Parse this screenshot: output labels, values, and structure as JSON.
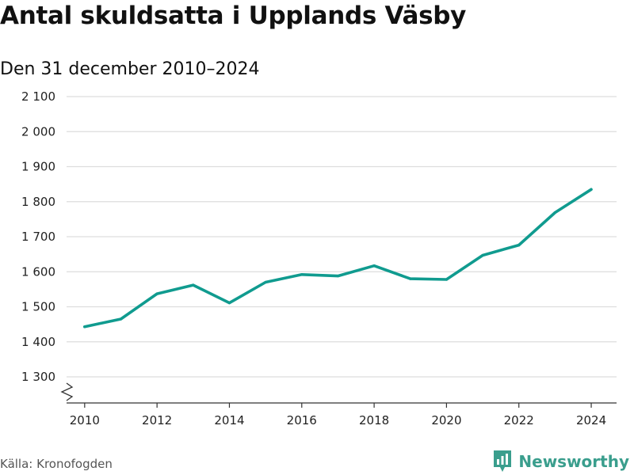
{
  "chart_data": {
    "type": "line",
    "title": "Antal skuldsatta i Upplands Väsby",
    "subtitle": "Den 31 december 2010–2024",
    "x": [
      2010,
      2011,
      2012,
      2013,
      2014,
      2015,
      2016,
      2017,
      2018,
      2019,
      2020,
      2021,
      2022,
      2023,
      2024
    ],
    "series": [
      {
        "name": "Antal skuldsatta",
        "values": [
          1443,
          1465,
          1537,
          1562,
          1511,
          1570,
          1592,
          1588,
          1617,
          1580,
          1578,
          1647,
          1676,
          1769,
          1835
        ]
      }
    ],
    "x_ticks": [
      2010,
      2012,
      2014,
      2016,
      2018,
      2020,
      2022,
      2024
    ],
    "x_tick_labels": [
      "2010",
      "2012",
      "2014",
      "2016",
      "2018",
      "2020",
      "2022",
      "2024"
    ],
    "y_ticks": [
      1300,
      1400,
      1500,
      1600,
      1700,
      1800,
      1900,
      2000,
      2100
    ],
    "y_tick_labels": [
      "1 300",
      "1 400",
      "1 500",
      "1 600",
      "1 700",
      "1 800",
      "1 900",
      "2 000",
      "2 100"
    ],
    "xlim": [
      2009.5,
      2024.7
    ],
    "ylim": [
      1300,
      2100
    ],
    "xlabel": "",
    "ylabel": "",
    "grid": true,
    "axis_break": true
  },
  "footer": {
    "source": "Källa: Kronofogden",
    "brand": "Newsworthy"
  },
  "colors": {
    "line": "#109b8f",
    "grid": "#dddddd",
    "axis": "#333333",
    "brand": "#3a9e8d"
  },
  "icons": {
    "brand_logo": "bar-chart-bubble-icon"
  }
}
